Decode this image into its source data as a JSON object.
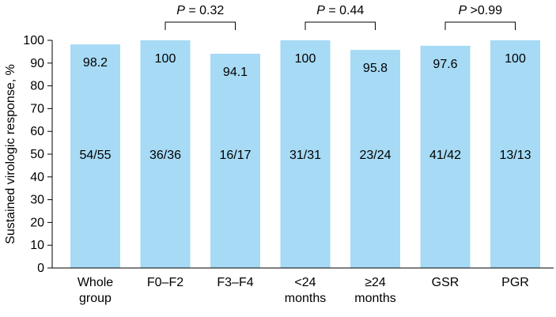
{
  "chart_data": {
    "type": "bar",
    "ylabel": "Sustained virologic response, %",
    "xlabel": "",
    "ylim": [
      0,
      100
    ],
    "yticks": [
      0,
      10,
      20,
      30,
      40,
      50,
      60,
      70,
      80,
      90,
      100
    ],
    "grid": false,
    "bar_color": "#a6daf5",
    "categories": [
      [
        "Whole",
        "group"
      ],
      [
        "F0–F2"
      ],
      [
        "F3–F4"
      ],
      [
        "<24",
        "months"
      ],
      [
        "≥24",
        "months"
      ],
      [
        "GSR"
      ],
      [
        "PGR"
      ]
    ],
    "values": [
      98.2,
      100,
      94.1,
      100,
      95.8,
      97.6,
      100
    ],
    "value_labels": [
      "98.2",
      "100",
      "94.1",
      "100",
      "95.8",
      "97.6",
      "100"
    ],
    "count_labels": [
      "54/55",
      "36/36",
      "16/17",
      "31/31",
      "23/24",
      "41/42",
      "13/13"
    ],
    "comparisons": [
      {
        "between": [
          1,
          2
        ],
        "p_symbol": "P",
        "p_text": "= 0.32"
      },
      {
        "between": [
          3,
          4
        ],
        "p_symbol": "P",
        "p_text": "= 0.44"
      },
      {
        "between": [
          5,
          6
        ],
        "p_symbol": "P",
        "p_text": ">0.99"
      }
    ]
  }
}
